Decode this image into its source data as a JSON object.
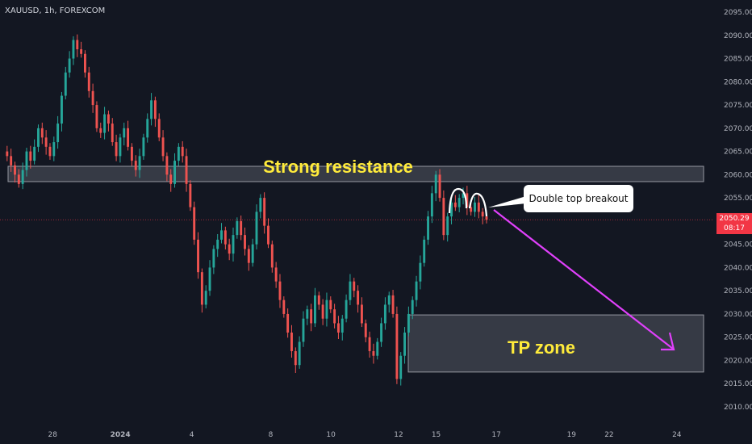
{
  "symbol": "XAUUSD, 1h, FOREXCOM",
  "current_price": "2050.29",
  "countdown": "08:17",
  "annotations": {
    "resistance_label": "Strong resistance",
    "tp_label": "TP zone",
    "callout": "Double top breakout"
  },
  "colors": {
    "background": "#131722",
    "bull": "#26a69a",
    "bear": "#ef5350",
    "zone": "#787b86",
    "label_yellow": "#ffeb3b",
    "arrow": "#e040fb",
    "price_badge": "#f23645"
  },
  "chart_data": {
    "type": "candlestick",
    "ylim": [
      2005,
      2097
    ],
    "y_ticks": [
      "2095.00",
      "2090.00",
      "2085.00",
      "2080.00",
      "2075.00",
      "2070.00",
      "2065.00",
      "2060.00",
      "2055.00",
      "2050.00",
      "2045.00",
      "2040.00",
      "2035.00",
      "2030.00",
      "2025.00",
      "2020.00",
      "2015.00",
      "2010.00"
    ],
    "y_tick_values": [
      2095,
      2090,
      2085,
      2080,
      2075,
      2070,
      2065,
      2060,
      2055,
      2050,
      2045,
      2040,
      2035,
      2030,
      2025,
      2020,
      2015,
      2010
    ],
    "x_ticks": [
      "28",
      "2024",
      "4",
      "8",
      "10",
      "12",
      "15",
      "17",
      "19",
      "22",
      "24"
    ],
    "x_tick_positions": [
      0.07,
      0.16,
      0.255,
      0.36,
      0.44,
      0.53,
      0.58,
      0.66,
      0.76,
      0.81,
      0.9
    ],
    "resistance_zone": [
      2058.5,
      2061.8
    ],
    "tp_zone": [
      2017.5,
      2029.8
    ],
    "current_price_value": 2050.29,
    "series": [
      {
        "values": [
          2065,
          2064,
          2062,
          2060,
          2058,
          2061,
          2065,
          2063,
          2066,
          2070,
          2068,
          2066,
          2064,
          2067,
          2071,
          2077,
          2082,
          2085,
          2089,
          2087,
          2086,
          2082,
          2078,
          2075,
          2070,
          2069,
          2073,
          2071,
          2067,
          2064,
          2068,
          2070,
          2066,
          2063,
          2061,
          2064,
          2068,
          2072,
          2076,
          2072,
          2068,
          2064,
          2060,
          2058,
          2063,
          2066,
          2064,
          2058,
          2053,
          2046,
          2039,
          2032,
          2035,
          2040,
          2044,
          2046,
          2048,
          2045,
          2043,
          2047,
          2050,
          2047,
          2044,
          2041,
          2045,
          2052,
          2055,
          2049,
          2045,
          2040,
          2037,
          2033,
          2030,
          2026,
          2022,
          2019,
          2024,
          2029,
          2031,
          2028,
          2034,
          2032,
          2029,
          2033,
          2031,
          2028,
          2026,
          2029,
          2033,
          2037,
          2035,
          2032,
          2028,
          2025,
          2022,
          2021,
          2024,
          2028,
          2032,
          2034,
          2030,
          2016,
          2021,
          2026,
          2030,
          2033,
          2037,
          2041,
          2046,
          2051,
          2056,
          2060,
          2055,
          2047,
          2051,
          2054,
          2053,
          2055,
          2056,
          2053,
          2052,
          2054,
          2052,
          2051,
          2050.3
        ]
      }
    ]
  }
}
